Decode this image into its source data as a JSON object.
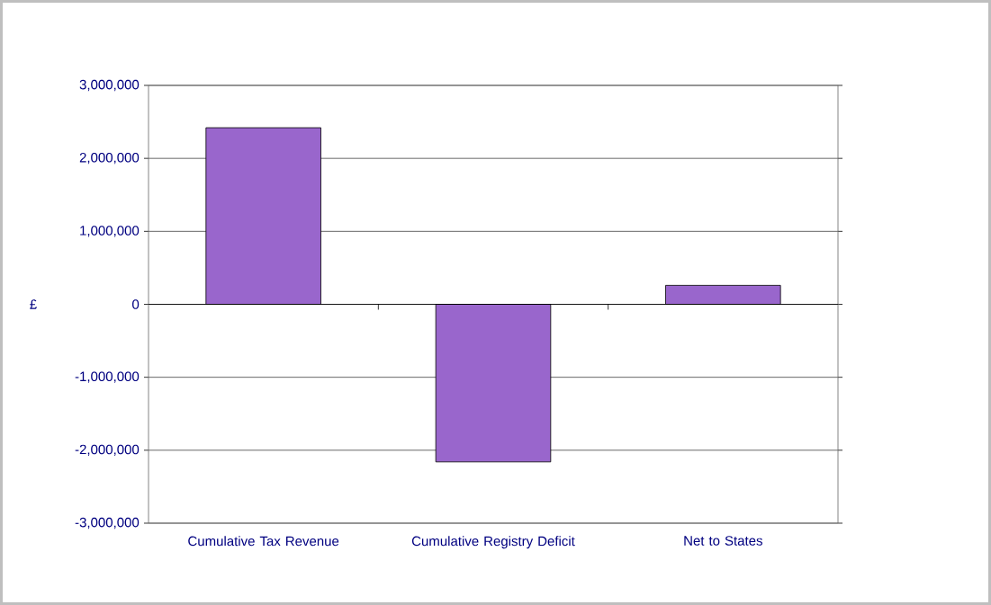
{
  "chart_data": {
    "type": "bar",
    "ylabel": "£",
    "categories": [
      "Cumulative Tax Revenue",
      "Cumulative Registry Deficit",
      "Net to States"
    ],
    "values": [
      2420000,
      -2160000,
      260000
    ],
    "color": "#9966cc",
    "ylim": [
      -3000000,
      3000000
    ],
    "yticks": [
      {
        "value": -3000000,
        "label": "-3,000,000"
      },
      {
        "value": -2000000,
        "label": "-2,000,000"
      },
      {
        "value": -1000000,
        "label": "-1,000,000"
      },
      {
        "value": 0,
        "label": "0"
      },
      {
        "value": 1000000,
        "label": "1,000,000"
      },
      {
        "value": 2000000,
        "label": "2,000,000"
      },
      {
        "value": 3000000,
        "label": "3,000,000"
      }
    ],
    "grid": "y"
  }
}
